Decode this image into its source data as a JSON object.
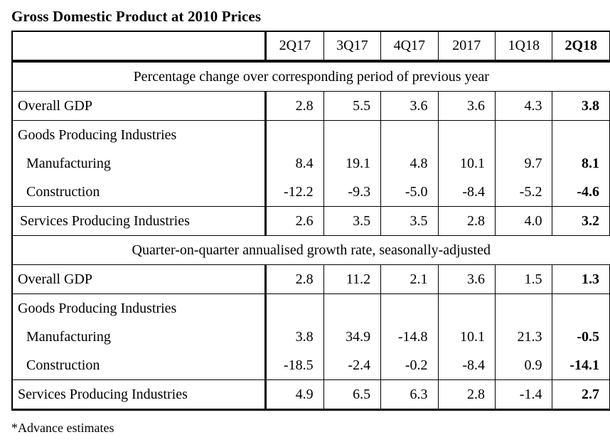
{
  "title": "Gross Domestic Product at 2010 Prices",
  "table": {
    "columns": [
      "2Q17",
      "3Q17",
      "4Q17",
      "2017",
      "1Q18",
      "2Q18"
    ],
    "section1": {
      "heading": "Percentage change over corresponding period of previous year",
      "rows": [
        {
          "label": "Overall GDP",
          "values": [
            "2.8",
            "5.5",
            "3.6",
            "3.6",
            "4.3",
            "3.8"
          ]
        },
        {
          "label": "Goods Producing Industries",
          "values": [
            "",
            "",
            "",
            "",
            "",
            ""
          ]
        },
        {
          "label": "Manufacturing",
          "values": [
            "8.4",
            "19.1",
            "4.8",
            "10.1",
            "9.7",
            "8.1"
          ]
        },
        {
          "label": "Construction",
          "values": [
            "-12.2",
            "-9.3",
            "-5.0",
            "-8.4",
            "-5.2",
            "-4.6"
          ]
        },
        {
          "label": "Services Producing Industries",
          "values": [
            "2.6",
            "3.5",
            "3.5",
            "2.8",
            "4.0",
            "3.2"
          ]
        }
      ]
    },
    "section2": {
      "heading": "Quarter-on-quarter annualised growth rate, seasonally-adjusted",
      "rows": [
        {
          "label": "Overall GDP",
          "values": [
            "2.8",
            "11.2",
            "2.1",
            "3.6",
            "1.5",
            "1.3"
          ]
        },
        {
          "label": "Goods Producing Industries",
          "values": [
            "",
            "",
            "",
            "",
            "",
            ""
          ]
        },
        {
          "label": "Manufacturing",
          "values": [
            "3.8",
            "34.9",
            "-14.8",
            "10.1",
            "21.3",
            "-0.5"
          ]
        },
        {
          "label": "Construction",
          "values": [
            "-18.5",
            "-2.4",
            "-0.2",
            "-8.4",
            "0.9",
            "-14.1"
          ]
        },
        {
          "label": "Services Producing Industries",
          "values": [
            "4.9",
            "6.5",
            "6.3",
            "2.8",
            "-1.4",
            "2.7"
          ]
        }
      ]
    }
  },
  "footnote": "*Advance estimates"
}
